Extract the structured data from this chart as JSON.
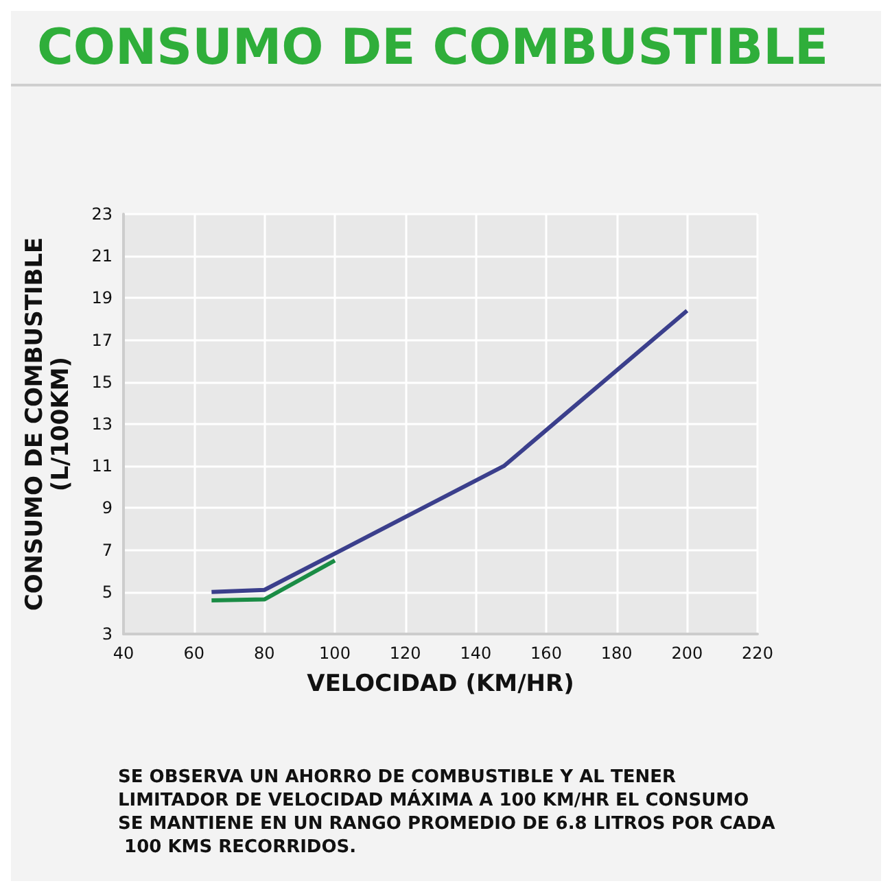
{
  "chart_data": {
    "type": "line",
    "title": "CONSUMO DE COMBUSTIBLE",
    "xlabel": "VELOCIDAD (KM/HR)",
    "ylabel": "CONSUMO DE COMBUSTIBLE\n(L/100KM)",
    "series": [
      {
        "color": "#3b3f8c",
        "x": [
          65,
          80,
          148,
          200
        ],
        "values": [
          5.0,
          5.1,
          11.0,
          18.4
        ]
      },
      {
        "color": "#1a8c45",
        "x": [
          65,
          80,
          100
        ],
        "values": [
          4.6,
          4.65,
          6.5
        ]
      }
    ],
    "xlim": [
      40,
      220
    ],
    "xticks": [
      40,
      60,
      80,
      100,
      120,
      140,
      160,
      180,
      200,
      220
    ],
    "ylim": [
      3,
      23
    ],
    "yticks": [
      3,
      5,
      7,
      9,
      11,
      13,
      15,
      17,
      19,
      21,
      23
    ],
    "grid": true,
    "marker": "none",
    "line_style": "solid",
    "annotations": [
      "SE OBSERVA UN AHORRO DE COMBUSTIBLE Y AL TENER LIMITADOR DE VELOCIDAD MÁXIMA A 100 KM/HR EL CONSUMO SE MANTIENE EN UN RANGO PROMEDIO DE 6.8 LITROS POR CADA 100 KMS RECORRIDOS."
    ]
  }
}
